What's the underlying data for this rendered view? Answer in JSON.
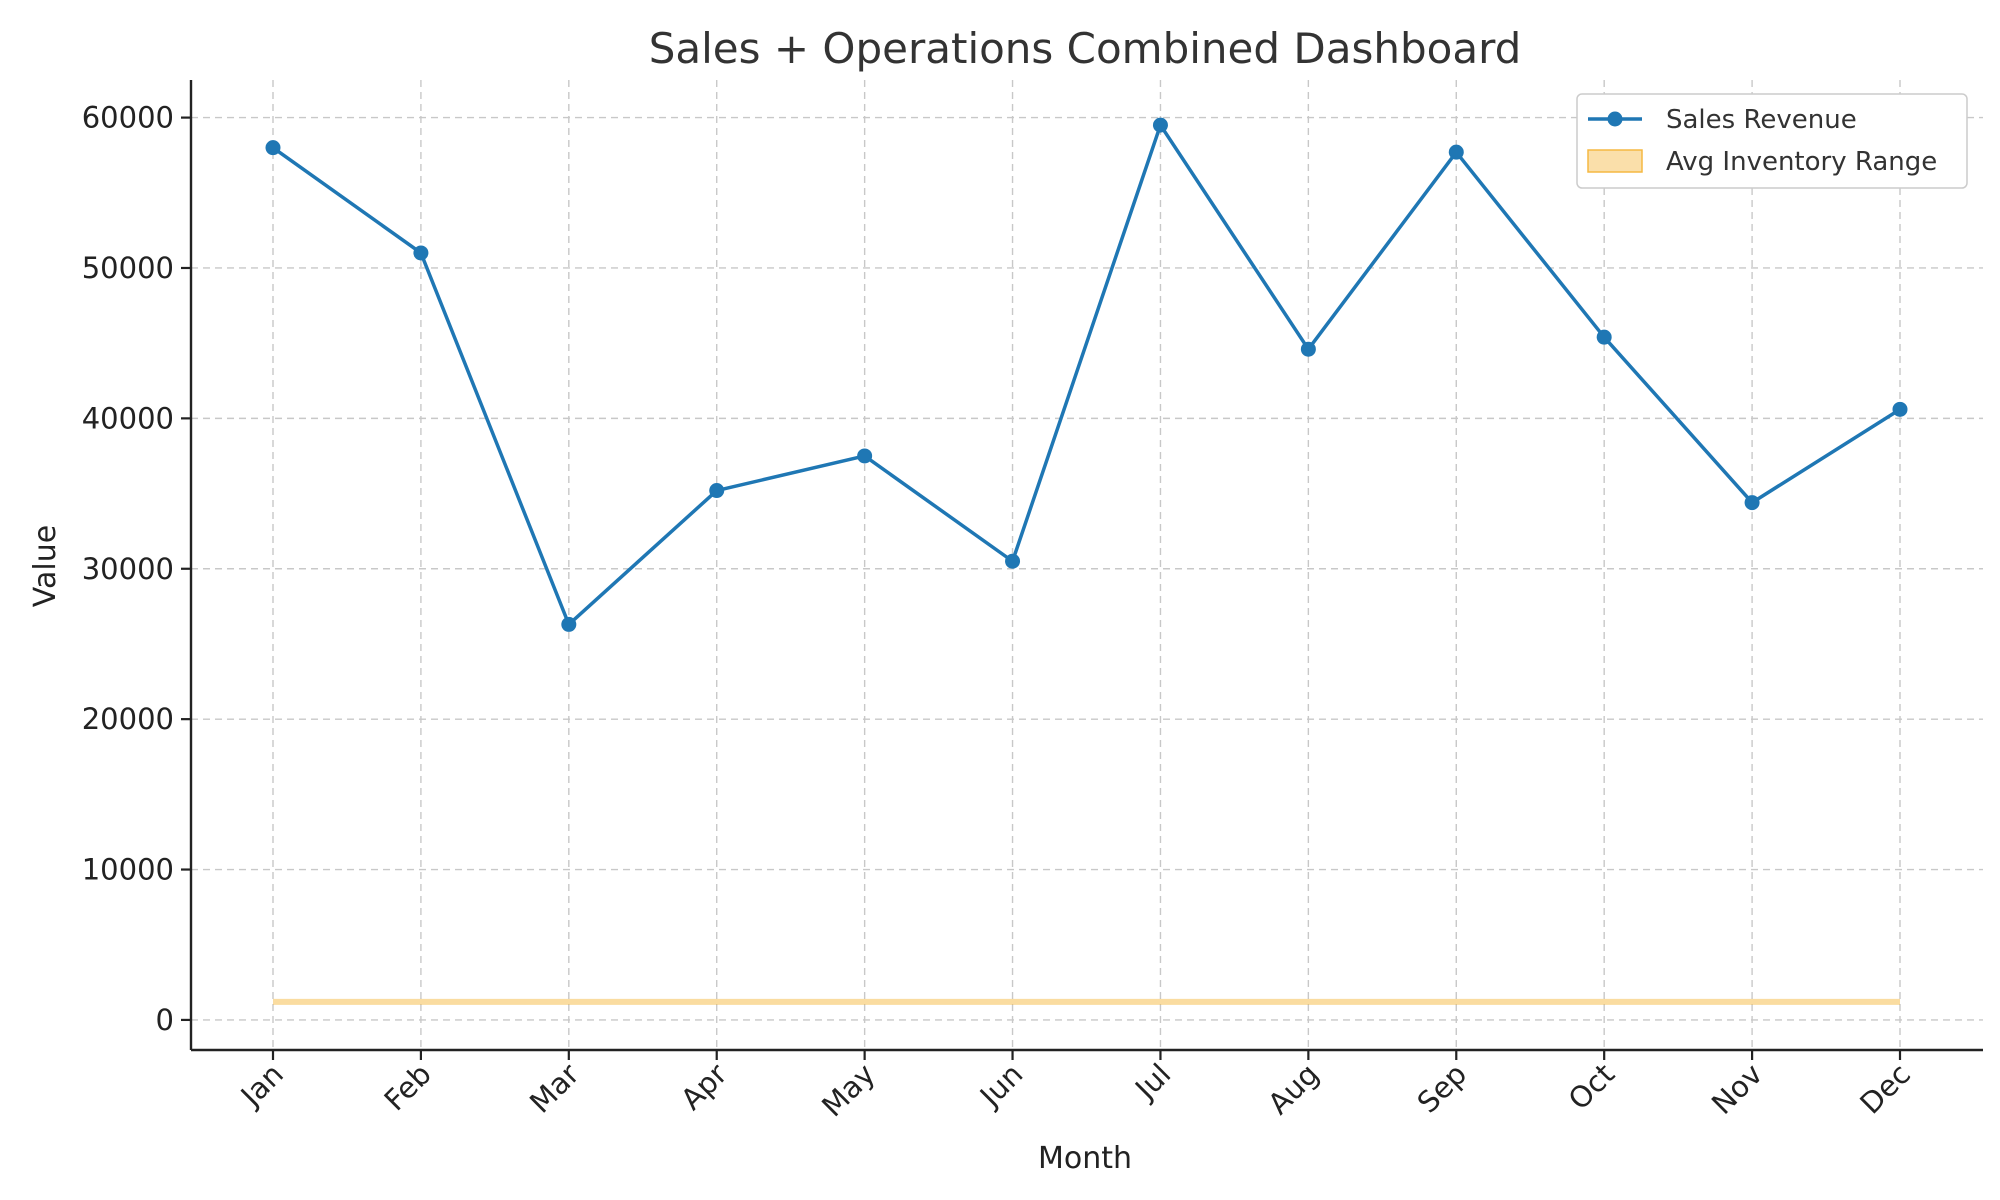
{
  "chart_data": {
    "type": "line",
    "title": "Sales + Operations Combined Dashboard",
    "xlabel": "Month",
    "ylabel": "Value",
    "categories": [
      "Jan",
      "Feb",
      "Mar",
      "Apr",
      "May",
      "Jun",
      "Jul",
      "Aug",
      "Sep",
      "Oct",
      "Nov",
      "Dec"
    ],
    "ylim": [
      -2000,
      62500
    ],
    "yticks": [
      "0",
      "10000",
      "20000",
      "30000",
      "40000",
      "50000",
      "60000"
    ],
    "series": [
      {
        "name": "Sales Revenue",
        "kind": "line-with-markers",
        "color": "#1f77b4",
        "values": [
          58000,
          51000,
          26300,
          35200,
          37500,
          30500,
          59500,
          44600,
          57700,
          45400,
          34400,
          40600
        ]
      },
      {
        "name": "Avg Inventory Range",
        "kind": "band",
        "color": "#f5b942",
        "lower": 1000,
        "upper": 1400
      }
    ],
    "grid": true,
    "legend": "top-right"
  }
}
